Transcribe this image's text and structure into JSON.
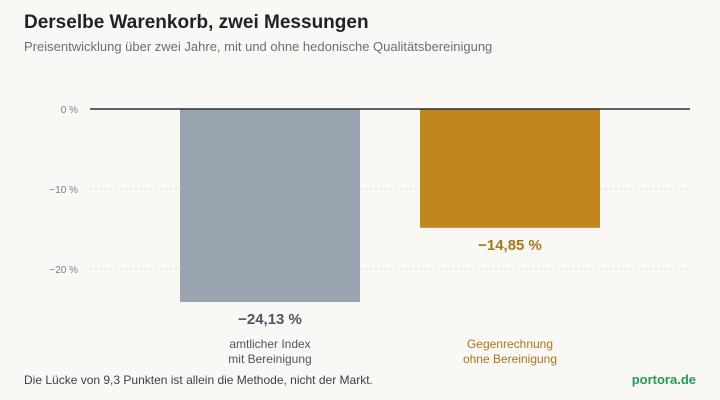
{
  "header": {
    "title": "Derselbe Warenkorb, zwei Messungen",
    "subtitle": "Preisentwicklung über zwei Jahre, mit und ohne hedonische Qualitätsbereinigung"
  },
  "footer": {
    "note": "Die Lücke von 9,3 Punkten ist allein die Methode, nicht der Markt.",
    "brand": "portora.de"
  },
  "colors": {
    "bar_official": "#9aa4b0",
    "bar_counter": "#c1871f",
    "label_official": "#4f5560",
    "label_counter": "#a8761a",
    "axis": "#2b2e35",
    "grid": "#d6d6d2",
    "tick": "#7a7e86"
  },
  "chart_data": {
    "type": "bar",
    "categories": [
      [
        "amtlicher Index",
        "mit Bereinigung"
      ],
      [
        "Gegenrechnung",
        "ohne Bereinigung"
      ]
    ],
    "values": [
      -24.13,
      -14.85
    ],
    "value_labels": [
      "−24,13 %",
      "−14,85 %"
    ],
    "yticks": [
      0,
      -10,
      -20
    ],
    "ytick_labels": [
      "0 %",
      "−10 %",
      "−20 %"
    ],
    "ylim": [
      -24.13,
      0
    ],
    "grid": true,
    "legend": "none"
  }
}
